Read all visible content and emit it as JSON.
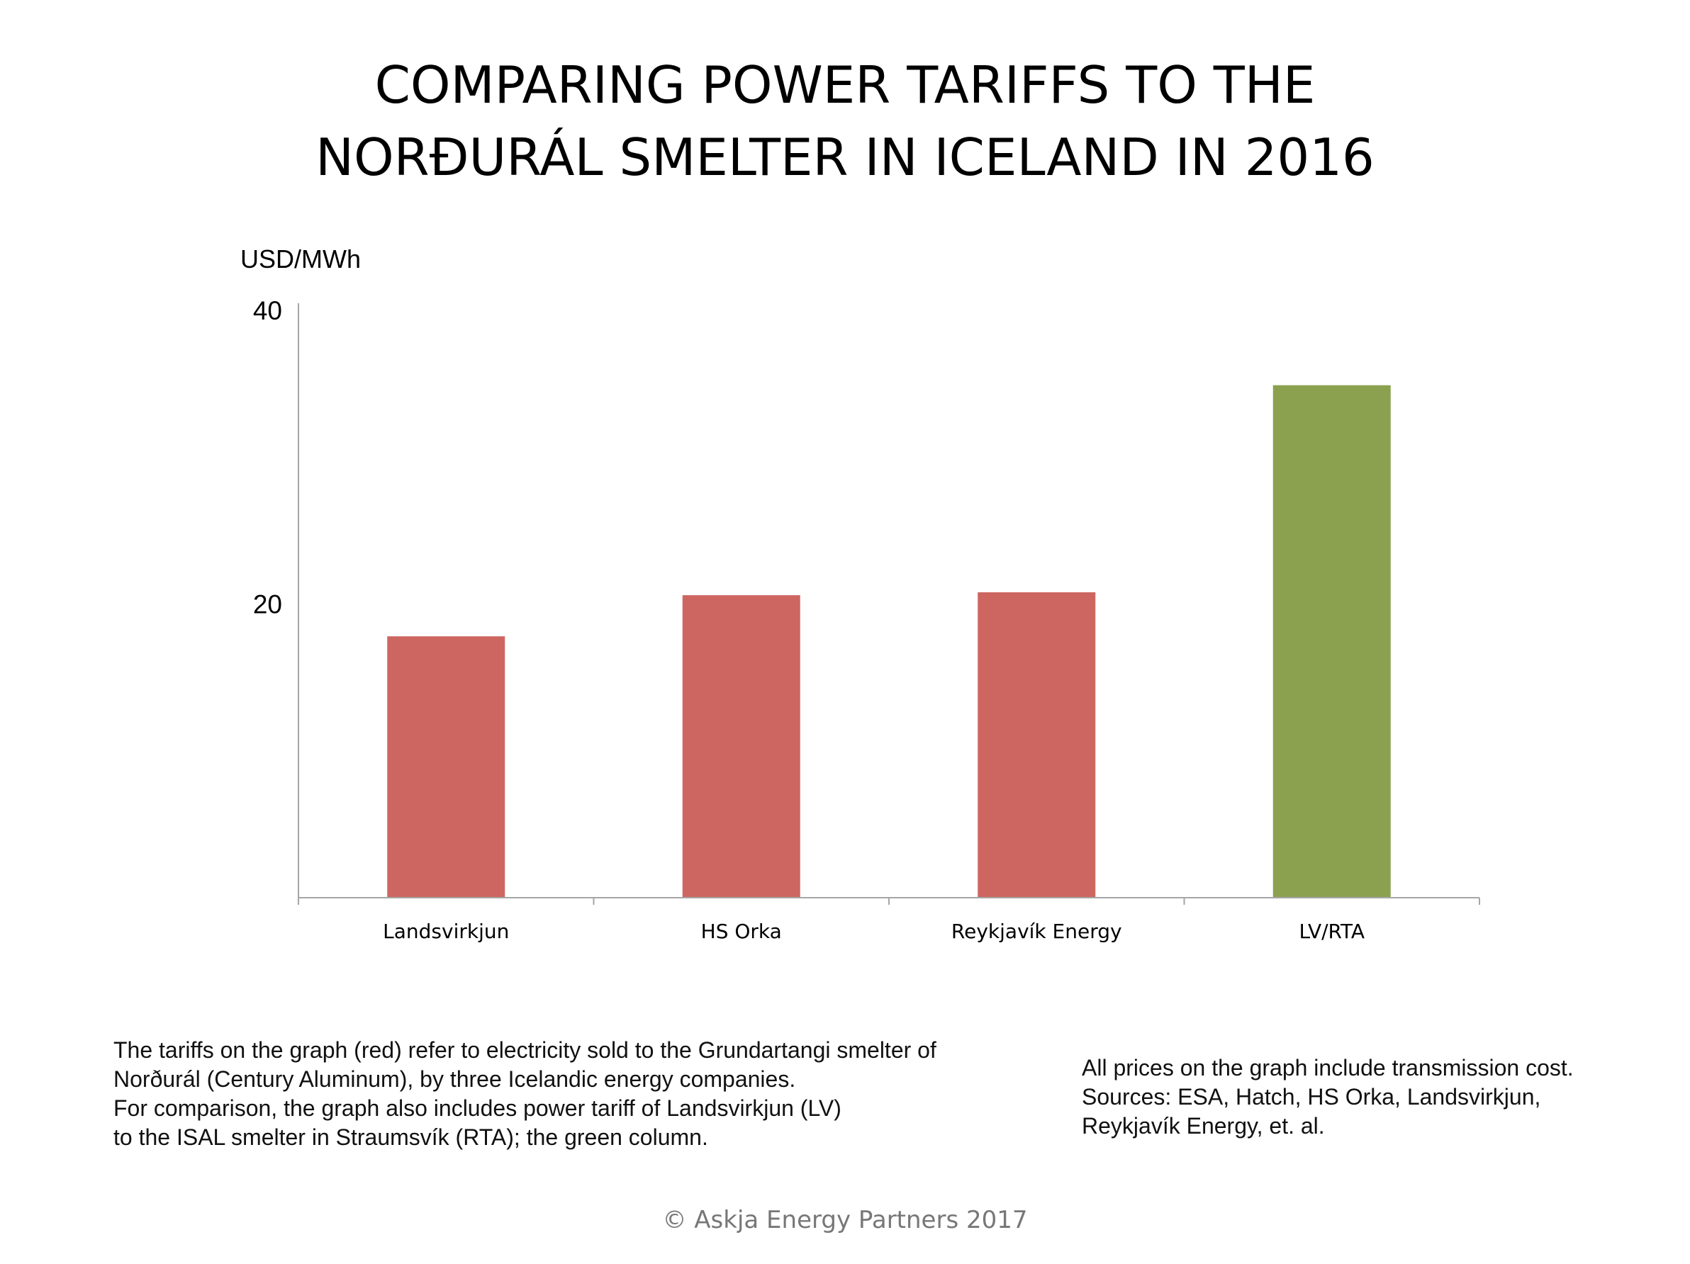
{
  "header": {
    "title_line_1": "COMPARING POWER TARIFFS TO THE",
    "title_line_2": "NORÐURÁL SMELTER IN ICELAND IN 2016"
  },
  "chart_data": {
    "type": "bar",
    "title": "COMPARING POWER TARIFFS TO THE NORÐURÁL SMELTER IN ICELAND IN 2016",
    "ylabel": "USD/MWh",
    "xlabel": "",
    "categories": [
      "Landsvirkjun",
      "HS Orka",
      "Reykjavík Energy",
      "LV/RTA"
    ],
    "values": [
      17.8,
      20.6,
      20.8,
      34.9
    ],
    "bar_colors": [
      "#cd6660",
      "#cd6660",
      "#cd6660",
      "#8ba14f"
    ],
    "ylim": [
      0,
      40
    ],
    "yticks": [
      "20",
      "40"
    ],
    "grid": false,
    "legend": "none"
  },
  "notes": {
    "left": [
      "The tariffs on the graph (red) refer to electricity sold to the Grundartangi smelter of",
      "Norðurál (Century Aluminum), by three Icelandic energy companies.",
      "For comparison, the graph also includes power tariff of Landsvirkjun (LV)",
      "to the ISAL smelter in Straumsvík (RTA); the green column."
    ],
    "right": [
      "All prices on the graph include transmission cost.",
      "Sources: ESA, Hatch, HS Orka, Landsvirkjun,",
      "Reykjavík Energy, et. al."
    ]
  },
  "footer": {
    "copyright": "© Askja Energy Partners 2017"
  },
  "colors": {
    "red_bar": "#cd6660",
    "green_bar": "#8ba14f",
    "axis": "#a6a6a6"
  }
}
